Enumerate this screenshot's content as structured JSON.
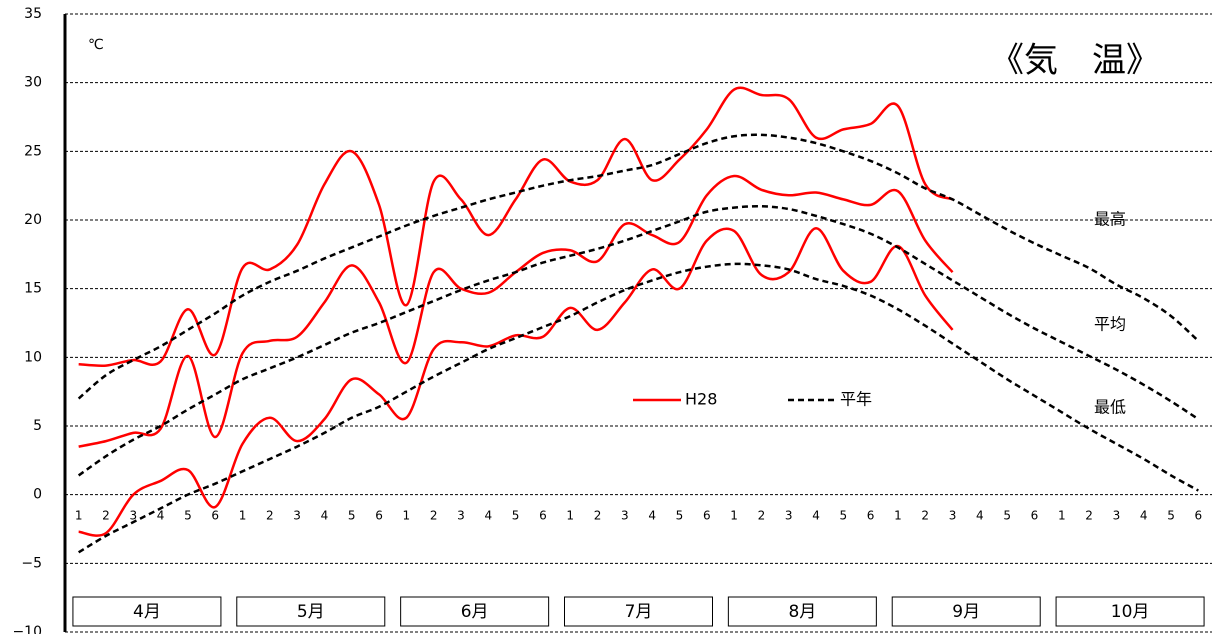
{
  "chart_data": {
    "type": "line",
    "title": "《気　温》",
    "unit": "℃",
    "categories": [
      "1",
      "2",
      "3",
      "4",
      "5",
      "6",
      "1",
      "2",
      "3",
      "4",
      "5",
      "6",
      "1",
      "2",
      "3",
      "4",
      "5",
      "6",
      "1",
      "2",
      "3",
      "4",
      "5",
      "6",
      "1",
      "2",
      "3",
      "4",
      "5",
      "6",
      "1",
      "2",
      "3",
      "4",
      "5",
      "6",
      "1",
      "2",
      "3",
      "4",
      "5",
      "6"
    ],
    "months": [
      "4月",
      "5月",
      "6月",
      "7月",
      "8月",
      "9月",
      "10月"
    ],
    "series": [
      {
        "name": "H28",
        "color": "#ff0000",
        "dashed": false,
        "max": [
          9.5,
          9.4,
          9.8,
          9.7,
          13.5,
          10.2,
          16.5,
          16.4,
          18.2,
          22.6,
          25.0,
          21.1,
          13.8,
          22.8,
          21.5,
          18.9,
          21.5,
          24.4,
          22.8,
          22.9,
          25.9,
          22.9,
          24.4,
          26.6,
          29.5,
          29.1,
          28.8,
          26.0,
          26.6,
          27.0,
          28.3,
          22.6,
          21.5,
          null,
          null,
          null,
          null,
          null,
          null,
          null,
          null,
          null
        ],
        "mean": [
          3.5,
          3.9,
          4.5,
          4.8,
          10.1,
          4.2,
          10.3,
          11.2,
          11.5,
          14.0,
          16.7,
          14.0,
          9.6,
          16.2,
          15.0,
          14.7,
          16.2,
          17.6,
          17.8,
          17.0,
          19.7,
          18.9,
          18.4,
          21.8,
          23.2,
          22.2,
          21.8,
          22.0,
          21.5,
          21.1,
          22.1,
          18.5,
          16.2,
          null,
          null,
          null,
          null,
          null,
          null,
          null,
          null,
          null
        ],
        "min": [
          -2.7,
          -2.8,
          0.0,
          1.0,
          1.8,
          -0.9,
          3.7,
          5.6,
          3.9,
          5.5,
          8.4,
          7.3,
          5.6,
          10.6,
          11.1,
          10.8,
          11.6,
          11.5,
          13.6,
          12.0,
          14.0,
          16.4,
          15.0,
          18.5,
          19.2,
          16.0,
          16.2,
          19.4,
          16.3,
          15.5,
          18.1,
          14.5,
          12.0,
          null,
          null,
          null,
          null,
          null,
          null,
          null,
          null,
          null
        ]
      },
      {
        "name": "平年",
        "color": "#000000",
        "dashed": true,
        "max": [
          7.0,
          8.7,
          9.8,
          10.8,
          12.0,
          13.2,
          14.5,
          15.5,
          16.3,
          17.2,
          18.0,
          18.8,
          19.6,
          20.3,
          20.9,
          21.5,
          22.0,
          22.5,
          22.9,
          23.2,
          23.6,
          24.0,
          24.8,
          25.6,
          26.1,
          26.2,
          26.0,
          25.6,
          25.0,
          24.3,
          23.4,
          22.3,
          21.5,
          20.4,
          19.3,
          18.3,
          17.4,
          16.5,
          15.3,
          14.3,
          13.0,
          11.2
        ],
        "mean": [
          1.4,
          2.8,
          4.0,
          5.0,
          6.2,
          7.3,
          8.4,
          9.2,
          10.0,
          10.9,
          11.8,
          12.5,
          13.3,
          14.1,
          14.9,
          15.6,
          16.2,
          16.9,
          17.4,
          17.9,
          18.5,
          19.2,
          19.9,
          20.6,
          20.9,
          21.0,
          20.8,
          20.3,
          19.7,
          19.0,
          18.0,
          16.8,
          15.6,
          14.4,
          13.2,
          12.1,
          11.1,
          10.1,
          9.1,
          8.0,
          6.8,
          5.5
        ],
        "min": [
          -4.2,
          -3.0,
          -2.0,
          -1.0,
          0.0,
          0.8,
          1.7,
          2.6,
          3.5,
          4.5,
          5.6,
          6.4,
          7.5,
          8.6,
          9.6,
          10.6,
          11.4,
          12.2,
          13.0,
          14.0,
          14.9,
          15.6,
          16.2,
          16.6,
          16.8,
          16.7,
          16.4,
          15.7,
          15.2,
          14.5,
          13.5,
          12.3,
          11.0,
          9.7,
          8.4,
          7.2,
          6.0,
          4.8,
          3.7,
          2.6,
          1.4,
          0.3
        ]
      }
    ],
    "annotations": [
      "最高",
      "平均",
      "最低"
    ],
    "ylim": [
      -10,
      35
    ],
    "yticks": [
      35,
      30,
      25,
      20,
      15,
      10,
      5,
      0,
      {
        "value": -5,
        "label": "−5"
      },
      {
        "value": -10,
        "label": "−10"
      }
    ],
    "grid": true
  }
}
